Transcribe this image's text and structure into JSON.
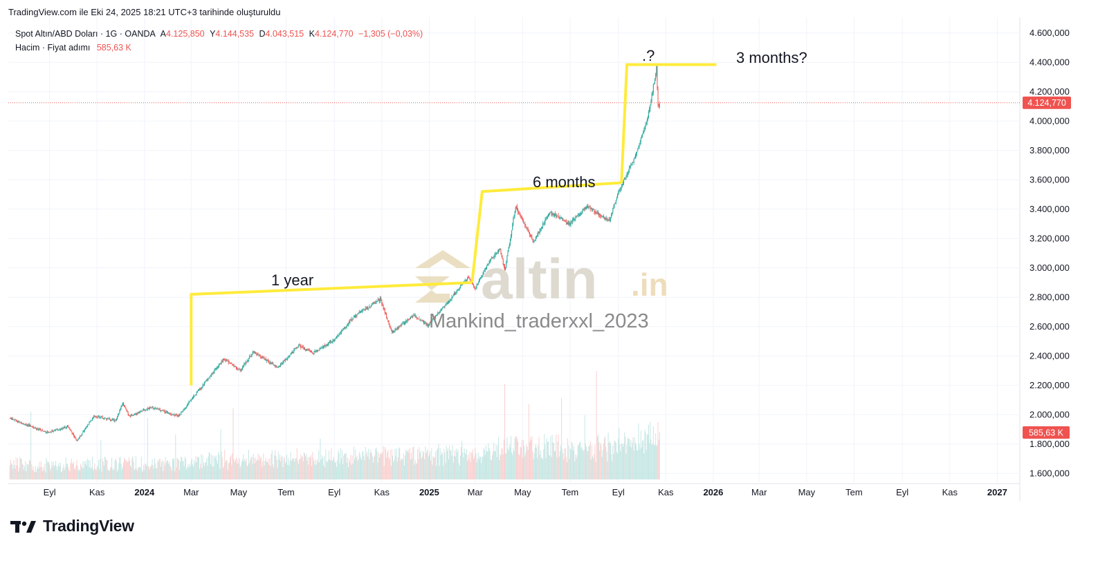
{
  "header": {
    "snapshot_text": "TradingView.com ile Eki 24, 2025 18:21 UTC+3 tarihinde oluşturuldu"
  },
  "legend": {
    "symbol": "Spot Altın/ABD Doları · 1G · OANDA",
    "open_label": "A",
    "open": "4.125,850",
    "high_label": "Y",
    "high": "4.144,535",
    "low_label": "D",
    "low": "4.043,515",
    "close_label": "K",
    "close": "4.124,770",
    "change": "−1,305 (−0,03%)",
    "volume_label": "Hacim · Fiyat adımı",
    "volume_value": "585,63 K"
  },
  "brand": {
    "name": "TradingView"
  },
  "watermark": {
    "logo_main": "altin",
    "logo_suffix": ".in",
    "author": "Mankind_traderxxl_2023"
  },
  "colors": {
    "up": "#26a69a",
    "down": "#ef5350",
    "annotation": "#ffeb3b",
    "price_line": "#ef5350"
  },
  "chart_data": {
    "type": "candlestick",
    "y_axis": {
      "ticks": [
        "4.600,000",
        "4.400,000",
        "4.200,000",
        "4.000,000",
        "3.800,000",
        "3.600,000",
        "3.400,000",
        "3.200,000",
        "3.000,000",
        "2.800,000",
        "2.600,000",
        "2.400,000",
        "2.200,000",
        "2.000,000",
        "1.800,000",
        "1.600,000"
      ],
      "tick_values": [
        4600,
        4400,
        4200,
        4000,
        3800,
        3600,
        3400,
        3200,
        3000,
        2800,
        2600,
        2400,
        2200,
        2000,
        1800,
        1600
      ],
      "ylim": [
        1540,
        4660
      ],
      "current_price_label": "4.124,770",
      "current_price": 4124.77,
      "volume_label": "585,63 K",
      "volume_value_k": 585.63
    },
    "x_axis": {
      "labels": [
        "Eyl",
        "Kas",
        "2024",
        "Mar",
        "May",
        "Tem",
        "Eyl",
        "Kas",
        "2025",
        "Mar",
        "May",
        "Tem",
        "Eyl",
        "Kas",
        "2026",
        "Mar",
        "May",
        "Tem",
        "Eyl",
        "Kas",
        "2027"
      ],
      "bold": [
        "2024",
        "2025",
        "2026",
        "2027"
      ],
      "dates": [
        "2023-09-01",
        "2023-11-01",
        "2024-01-01",
        "2024-03-01",
        "2024-05-01",
        "2024-07-01",
        "2024-09-01",
        "2024-11-01",
        "2025-01-01",
        "2025-03-01",
        "2025-05-01",
        "2025-07-01",
        "2025-09-01",
        "2025-11-01",
        "2026-01-01",
        "2026-03-01",
        "2026-05-01",
        "2026-07-01",
        "2026-09-01",
        "2026-11-01",
        "2027-01-01"
      ],
      "xlim": [
        "2023-07-10",
        "2027-01-30"
      ]
    },
    "price_path": [
      {
        "date": "2023-07-12",
        "price": 1975
      },
      {
        "date": "2023-08-10",
        "price": 1915
      },
      {
        "date": "2023-08-30",
        "price": 1880
      },
      {
        "date": "2023-09-25",
        "price": 1920
      },
      {
        "date": "2023-10-06",
        "price": 1820
      },
      {
        "date": "2023-10-28",
        "price": 1990
      },
      {
        "date": "2023-11-25",
        "price": 1960
      },
      {
        "date": "2023-12-04",
        "price": 2080
      },
      {
        "date": "2023-12-12",
        "price": 1990
      },
      {
        "date": "2024-01-10",
        "price": 2050
      },
      {
        "date": "2024-02-14",
        "price": 1990
      },
      {
        "date": "2024-03-05",
        "price": 2130
      },
      {
        "date": "2024-04-12",
        "price": 2380
      },
      {
        "date": "2024-05-03",
        "price": 2300
      },
      {
        "date": "2024-05-20",
        "price": 2430
      },
      {
        "date": "2024-06-20",
        "price": 2320
      },
      {
        "date": "2024-07-17",
        "price": 2470
      },
      {
        "date": "2024-08-05",
        "price": 2420
      },
      {
        "date": "2024-09-01",
        "price": 2510
      },
      {
        "date": "2024-09-25",
        "price": 2660
      },
      {
        "date": "2024-10-30",
        "price": 2790
      },
      {
        "date": "2024-11-14",
        "price": 2560
      },
      {
        "date": "2024-12-12",
        "price": 2680
      },
      {
        "date": "2024-12-30",
        "price": 2610
      },
      {
        "date": "2025-01-30",
        "price": 2800
      },
      {
        "date": "2025-02-20",
        "price": 2940
      },
      {
        "date": "2025-03-01",
        "price": 2860
      },
      {
        "date": "2025-03-20",
        "price": 3050
      },
      {
        "date": "2025-04-02",
        "price": 3130
      },
      {
        "date": "2025-04-08",
        "price": 2980
      },
      {
        "date": "2025-04-22",
        "price": 3420
      },
      {
        "date": "2025-05-15",
        "price": 3180
      },
      {
        "date": "2025-06-05",
        "price": 3380
      },
      {
        "date": "2025-06-30",
        "price": 3300
      },
      {
        "date": "2025-07-23",
        "price": 3420
      },
      {
        "date": "2025-08-20",
        "price": 3320
      },
      {
        "date": "2025-09-02",
        "price": 3530
      },
      {
        "date": "2025-09-22",
        "price": 3750
      },
      {
        "date": "2025-10-08",
        "price": 4000
      },
      {
        "date": "2025-10-20",
        "price": 4360
      },
      {
        "date": "2025-10-22",
        "price": 4100
      },
      {
        "date": "2025-10-24",
        "price": 4124.77
      }
    ],
    "annotations": [
      {
        "text": "1 year",
        "type": "trendline",
        "from": {
          "date": "2024-03-01",
          "price": 2200
        },
        "corner": {
          "date": "2024-03-01",
          "price": 2820
        },
        "to": {
          "date": "2025-02-25",
          "price": 2900
        }
      },
      {
        "text": "6 months",
        "type": "trendline",
        "from": {
          "date": "2025-02-25",
          "price": 2900
        },
        "corner": {
          "date": "2025-03-10",
          "price": 3520
        },
        "to": {
          "date": "2025-09-05",
          "price": 3580
        }
      },
      {
        "text": ".?",
        "type": "trendline",
        "from": {
          "date": "2025-09-05",
          "price": 3580
        },
        "corner": {
          "date": "2025-09-12",
          "price": 4385
        },
        "to": {
          "date": "2026-01-05",
          "price": 4385
        }
      },
      {
        "text": "3 months?",
        "type": "label",
        "at": {
          "date": "2026-01-05",
          "price": 4385
        }
      }
    ]
  }
}
